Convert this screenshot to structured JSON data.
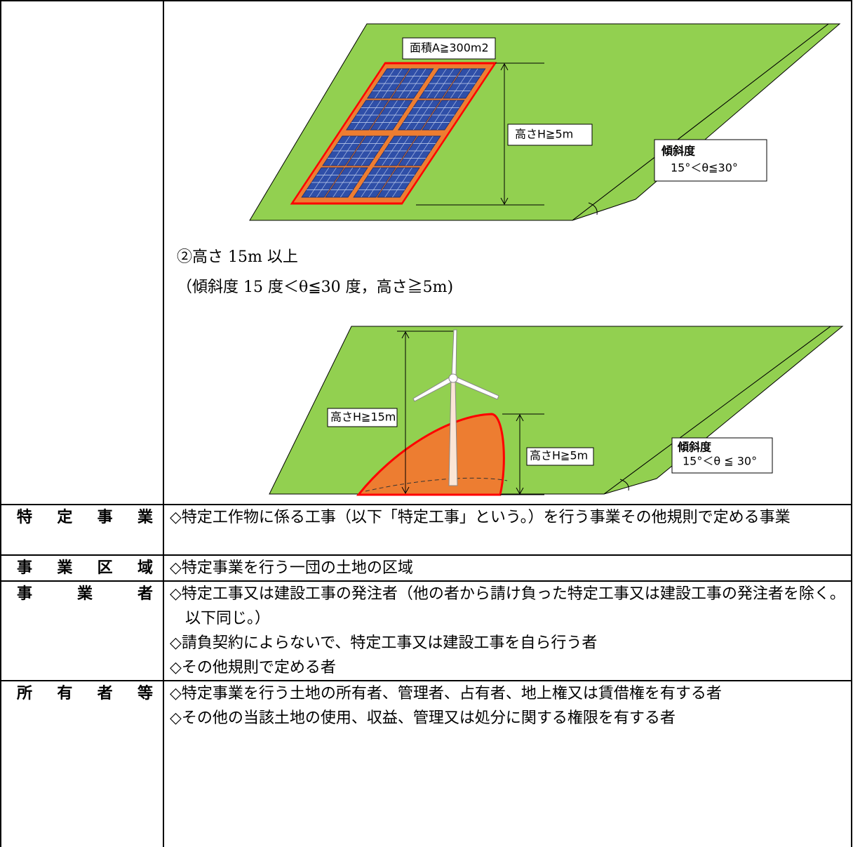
{
  "diagram1": {
    "area_label": "面積A≧300m2",
    "height_label": "高さH≧5m",
    "slope_title": "傾斜度",
    "slope_range": "15°＜θ≦30°"
  },
  "caption": {
    "line1": "②高さ 15m 以上",
    "line2": "（傾斜度 15 度＜θ≦30 度，高さ≧5m)"
  },
  "diagram2": {
    "tower_height_label": "高さH≧15m",
    "height_label": "高さH≧5m",
    "slope_title": "傾斜度",
    "slope_range": "15°＜θ ≦ 30°"
  },
  "table": {
    "rows": [
      {
        "term": "特定事業",
        "items": [
          "◇特定工作物に係る工事（以下「特定工事」という。）を行う事業その他規則で定める事業"
        ]
      },
      {
        "term": "事業区域",
        "items": [
          "◇特定事業を行う一団の土地の区域"
        ]
      },
      {
        "term": "事業者",
        "items": [
          "◇特定工事又は建設工事の発注者（他の者から請け負った特定工事又は建設工事の発注者を除く。以下同じ。）",
          "◇請負契約によらないで、特定工事又は建設工事を自ら行う者",
          "◇その他規則で定める者"
        ]
      },
      {
        "term": "所有者等",
        "items": [
          "◇特定事業を行う土地の所有者、管理者、占有者、地上権又は賃借権を有する者",
          "◇その他の当該土地の使用、収益、管理又は処分に関する権限を有する者"
        ]
      }
    ]
  }
}
